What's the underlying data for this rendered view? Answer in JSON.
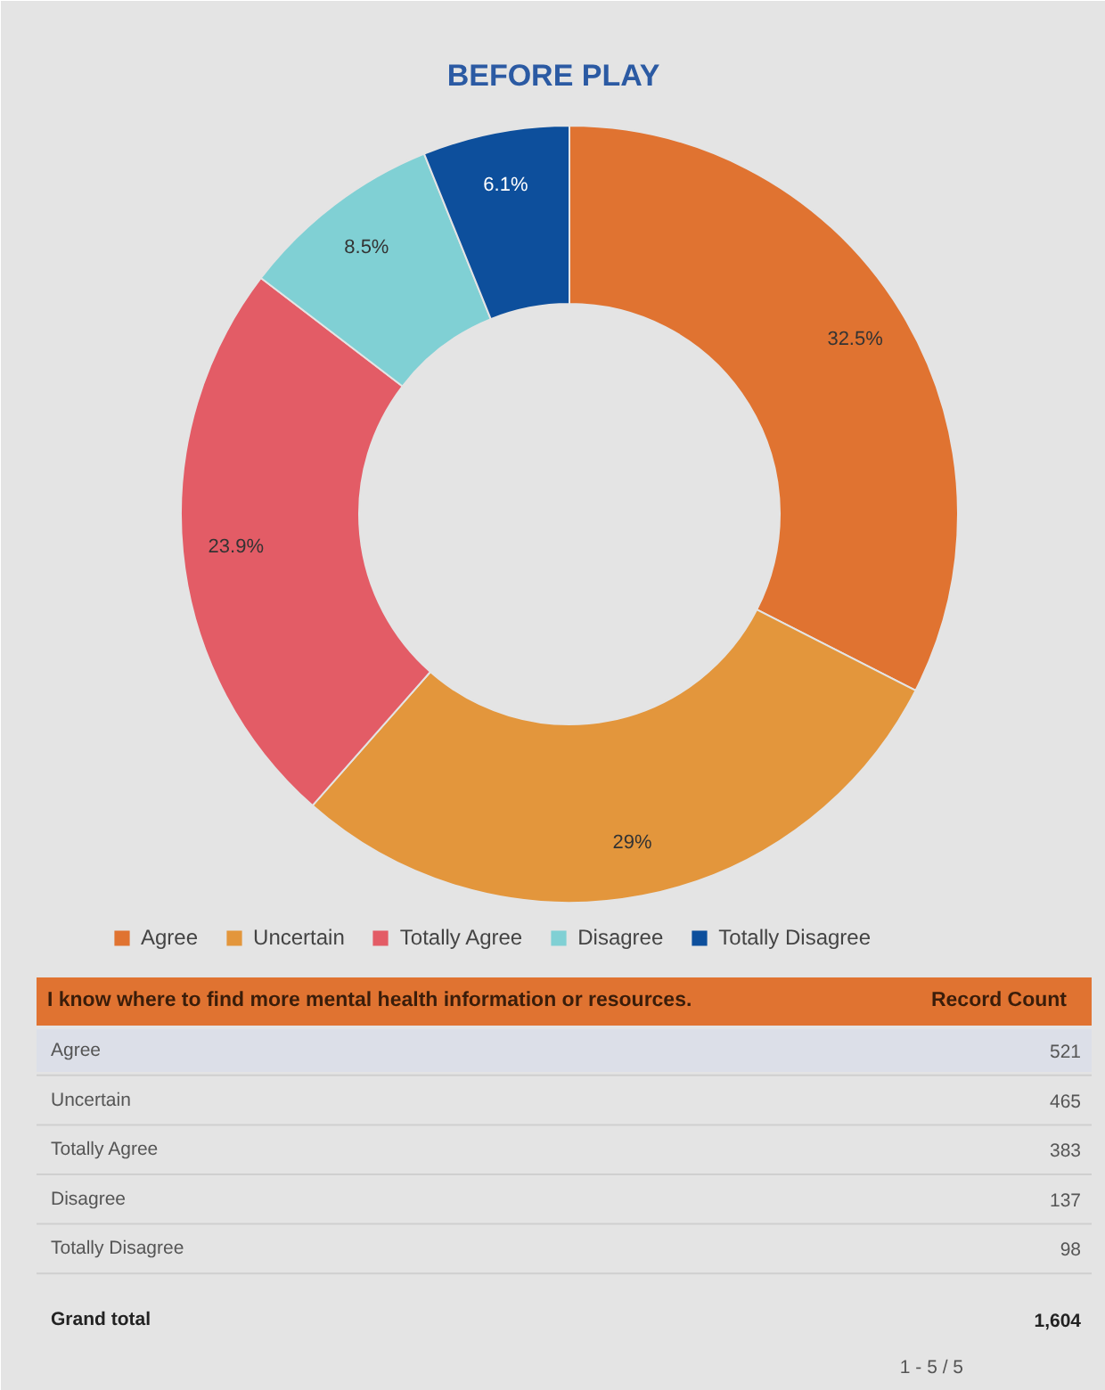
{
  "chart_data": {
    "type": "donut",
    "title": "BEFORE PLAY",
    "categories": [
      "Agree",
      "Uncertain",
      "Totally Agree",
      "Disagree",
      "Totally Disagree"
    ],
    "values": [
      32.5,
      29,
      23.9,
      8.5,
      6.1
    ],
    "colors": [
      "#e07331",
      "#e3963c",
      "#e35c66",
      "#80d0d4",
      "#0d4f9c"
    ],
    "value_labels": [
      "32.5%",
      "29%",
      "23.9%",
      "8.5%",
      "6.1%"
    ],
    "legend": "bottom",
    "annotations": [
      "I know where to find more mental health information or resources.",
      "Record Count",
      "Grand total",
      "1,604",
      "1 - 5 / 5",
      "521",
      "465",
      "383",
      "137",
      "98"
    ]
  }
}
